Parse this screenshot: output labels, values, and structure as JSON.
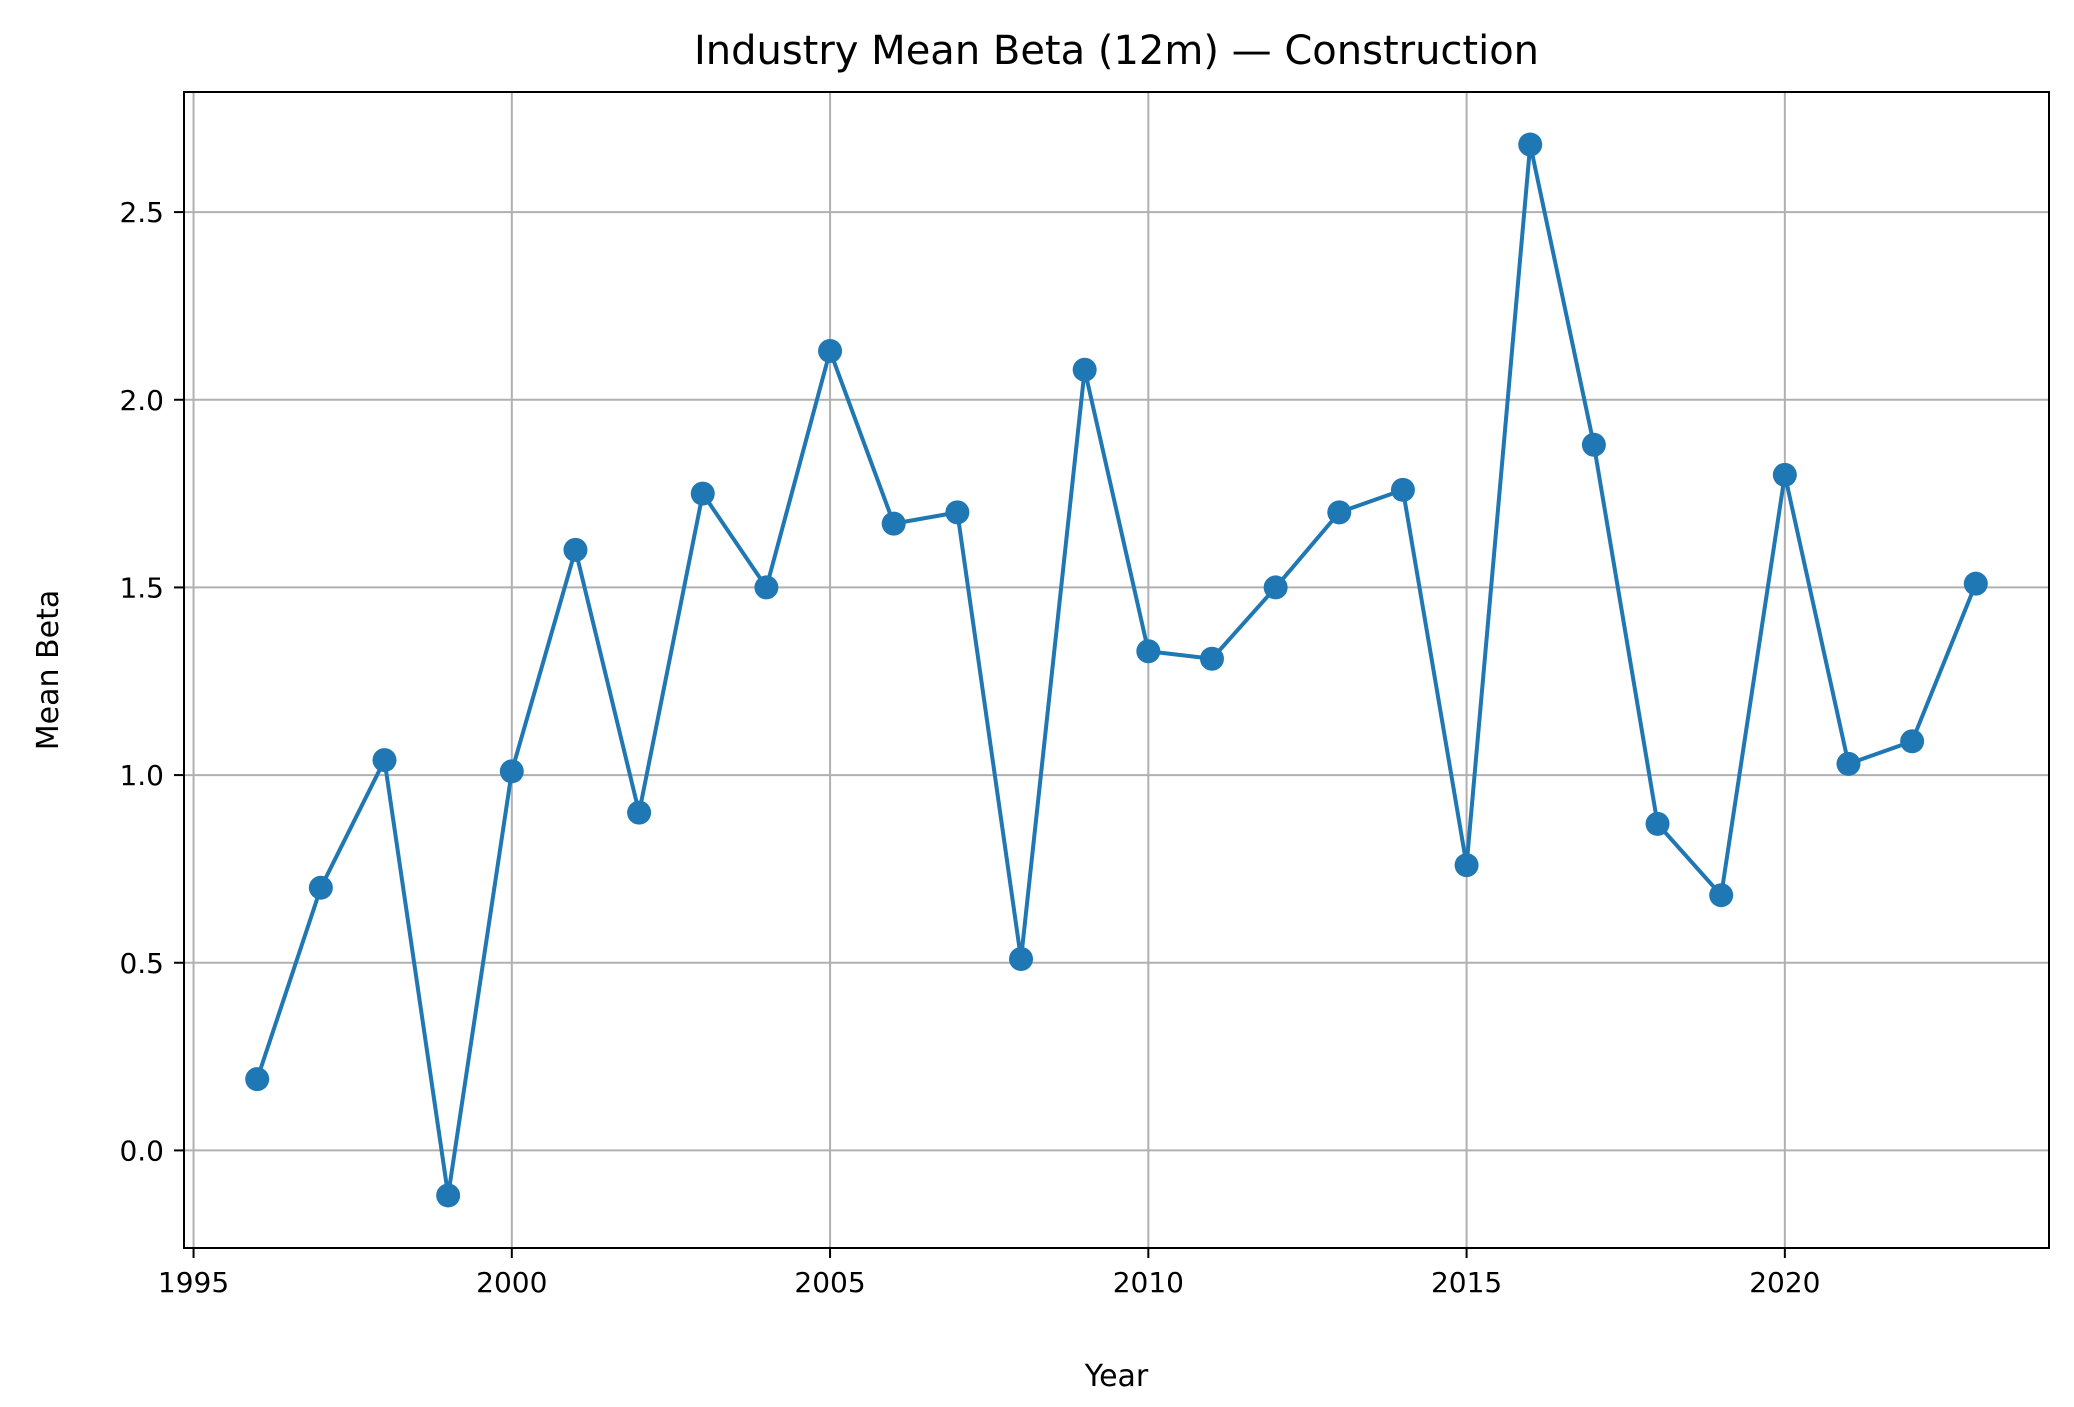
{
  "chart_data": {
    "type": "line",
    "title": "Industry Mean Beta (12m) — Construction",
    "xlabel": "Year",
    "ylabel": "Mean Beta",
    "xlim": [
      1994.85,
      2024.15
    ],
    "ylim": [
      -0.26,
      2.82
    ],
    "xticks": [
      1995,
      2000,
      2005,
      2010,
      2015,
      2020
    ],
    "yticks": [
      0.0,
      0.5,
      1.0,
      1.5,
      2.0,
      2.5
    ],
    "grid": true,
    "colors": {
      "series": "#1f77b4",
      "grid": "#b0b0b0"
    },
    "series": [
      {
        "x": [
          1996,
          1997,
          1998,
          1999,
          2000,
          2001,
          2002,
          2003,
          2004,
          2005,
          2006,
          2007,
          2008,
          2009,
          2010,
          2011,
          2012,
          2013,
          2014,
          2015,
          2016,
          2017,
          2018,
          2019,
          2020,
          2021,
          2022,
          2023
        ],
        "values": [
          0.19,
          0.7,
          1.04,
          -0.12,
          1.01,
          1.6,
          0.9,
          1.75,
          1.5,
          2.13,
          1.67,
          1.7,
          0.51,
          2.08,
          1.33,
          1.31,
          1.5,
          1.7,
          1.76,
          0.76,
          2.68,
          1.88,
          0.87,
          0.68,
          1.8,
          1.03,
          1.09,
          1.51
        ]
      }
    ]
  }
}
